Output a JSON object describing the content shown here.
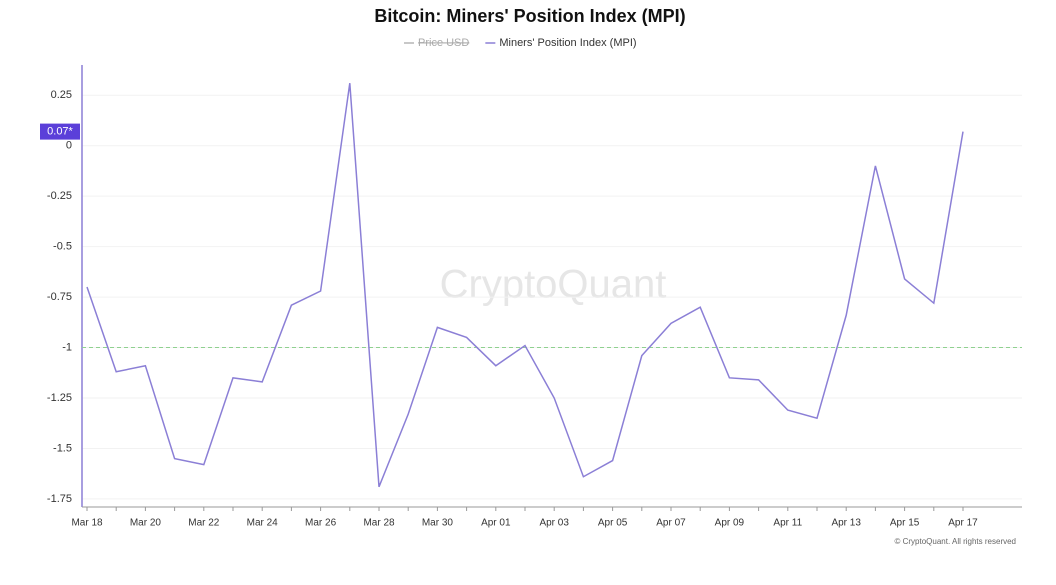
{
  "chart_data": {
    "type": "line",
    "title": "Bitcoin: Miners' Position Index (MPI)",
    "legend": [
      {
        "name": "Price USD",
        "color": "#b5b5b5",
        "hidden": true
      },
      {
        "name": "Miners' Position Index (MPI)",
        "color": "#8b7fd6"
      }
    ],
    "categories": [
      "Mar 18",
      null,
      "Mar 20",
      null,
      "Mar 22",
      null,
      "Mar 24",
      null,
      "Mar 26",
      null,
      "Mar 28",
      null,
      "Mar 30",
      null,
      "Apr 01",
      null,
      "Apr 03",
      null,
      "Apr 05",
      null,
      "Apr 07",
      null,
      "Apr 09",
      null,
      "Apr 11",
      null,
      "Apr 13",
      null,
      "Apr 15",
      null,
      "Apr 17"
    ],
    "series": [
      {
        "name": "Miners' Position Index (MPI)",
        "color": "#8b7fd6",
        "values": [
          -0.7,
          -1.12,
          -1.09,
          -1.55,
          -1.58,
          -1.15,
          -1.17,
          -0.79,
          -0.72,
          0.31,
          -1.69,
          -1.33,
          -0.9,
          -0.95,
          -1.09,
          -0.99,
          -1.25,
          -1.64,
          -1.56,
          -1.04,
          -0.88,
          -0.8,
          -1.15,
          -1.16,
          -1.31,
          -1.35,
          -0.84,
          -0.1,
          -0.66,
          -0.78,
          0.07
        ]
      }
    ],
    "last_value_label": {
      "value": 0.07,
      "label": "0.07*",
      "color": "#5b3fd9"
    },
    "reference_line": {
      "value": -1,
      "color": "#8fd18f"
    },
    "ylim": [
      -1.79,
      0.4
    ],
    "yticks": [
      0.25,
      0,
      -0.25,
      -0.5,
      -0.75,
      -1,
      -1.25,
      -1.5,
      -1.75
    ],
    "grid": true,
    "watermark": "CryptoQuant",
    "footer": "© CryptoQuant. All rights reserved"
  }
}
